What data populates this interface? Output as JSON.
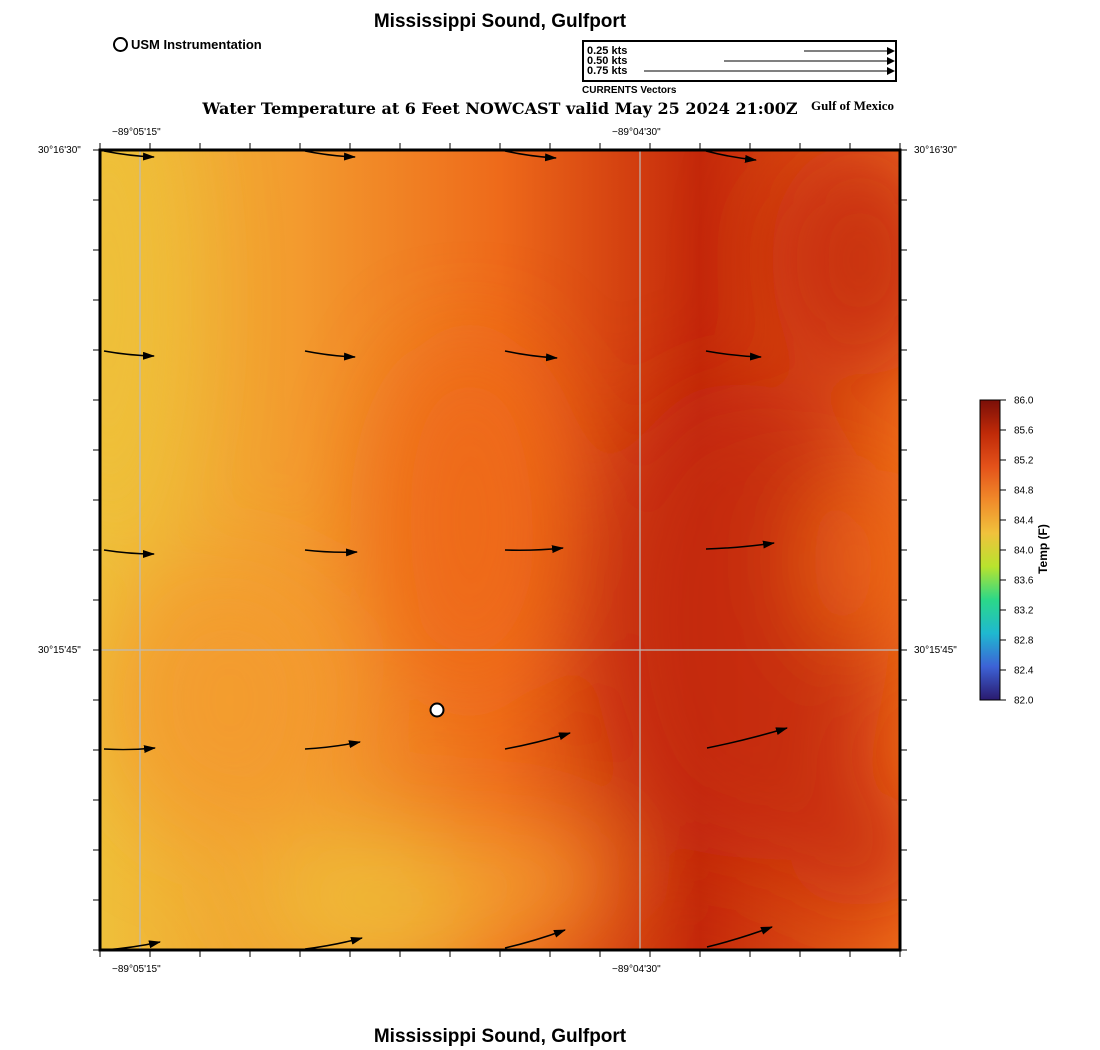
{
  "header": {
    "location_title": "Mississippi Sound, Gulfport",
    "main_title": "Water Temperature at 6 Feet NOWCAST valid May 25 2024 21:00Z",
    "region_label": "Gulf of Mexico",
    "footer_title": "Mississippi Sound, Gulfport"
  },
  "legend": {
    "station_label": "USM Instrumentation",
    "vector_scale": [
      "0.25 kts",
      "0.50 kts",
      "0.75 kts"
    ],
    "vector_caption": "CURRENTS Vectors"
  },
  "axes": {
    "lon_ticks": [
      "−89°05'15\"",
      "−89°04'30\""
    ],
    "lat_ticks": [
      "30°16'30\"",
      "30°15'45\""
    ]
  },
  "colorbar": {
    "title": "Temp (F)",
    "min": 82.0,
    "max": 86.0,
    "ticks": [
      "82.0",
      "82.4",
      "82.8",
      "83.2",
      "83.6",
      "84.0",
      "84.4",
      "84.8",
      "85.2",
      "85.6",
      "86.0"
    ],
    "colors": [
      "#2a1a6e",
      "#3d62d6",
      "#1fb8d0",
      "#2bd889",
      "#b8e32e",
      "#f0c23c",
      "#f08a2a",
      "#e4521a",
      "#c02a08",
      "#7a0f08"
    ]
  },
  "field_colors": {
    "cool": "#efc03a",
    "mid": "#f39a2e",
    "warm": "#ee6a1a",
    "hot": "#c4280a"
  },
  "station_marker": {
    "name": "USM Instrumentation"
  }
}
